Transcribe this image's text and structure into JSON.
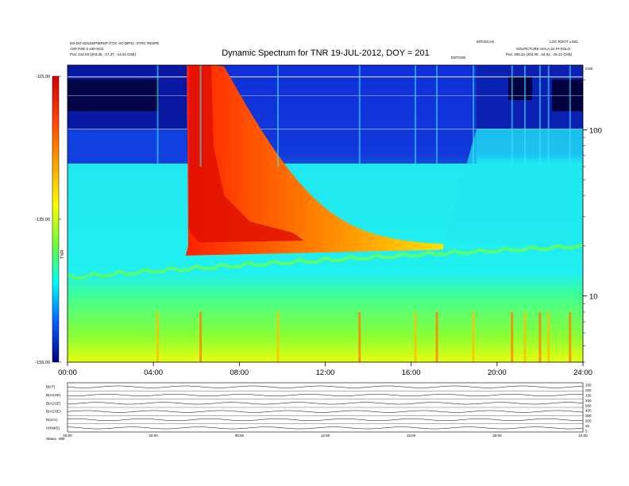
{
  "chart_data": {
    "type": "heatmap",
    "title": "Dynamic Spectrum for TNR 19-JUL-2012, DOY = 201",
    "header_left": {
      "line1": "DS-DO-SOLEDPWRSP (TOC SO (BPS) -STRC RESPE",
      "line2": "ASP PSE-2 x30-SO2",
      "line3": "Pos:     210.03 (204.35, -17.37, -14.52 GSE)"
    },
    "header_right": {
      "line1": "LOC ROOT x 501",
      "line2": "SOLPICTURE SOLA-24 PI-SOLO",
      "line3": "Pos:     208.22 (204.06, -44.01, -15.12 GSE)",
      "tag": "MTOSCAS",
      "corner": "GSE"
    },
    "center_tag": "DSTOSE",
    "x_axis": {
      "range_hours": [
        0,
        24
      ],
      "ticks": [
        "00:00",
        "04:00",
        "08:00",
        "12:00",
        "16:00",
        "20:00",
        "24:00"
      ]
    },
    "y_axis": {
      "scale": "log",
      "range": [
        4.0,
        245
      ],
      "ticks": [
        10,
        100
      ],
      "tick_labels": [
        "10",
        "100"
      ]
    },
    "colorbar": {
      "range": [
        -155.0,
        -115.0
      ],
      "tick_labels": [
        "-115.00",
        "-135.00",
        "-155.00"
      ],
      "label": "TNR",
      "colors": [
        "#8b0000",
        "#ff0000",
        "#ff8c00",
        "#ffff00",
        "#80ff00",
        "#00ff80",
        "#00ffff",
        "#0080ff",
        "#0000ff",
        "#000080"
      ]
    },
    "features": {
      "burst_start_hours": 5.5,
      "burst_end_hours": 17.5,
      "plasma_line_start_mhz": 13.0,
      "plasma_line_end_mhz": 20.0
    },
    "panels": {
      "labels": [
        "B(nT)",
        "B(AGSE)",
        "B(AGSE)",
        "B(AGSE)",
        "N(1/cc)",
        "V(KM/S)"
      ],
      "right_scales": [
        "250",
        "200",
        "150",
        "100",
        "500",
        "400",
        "300",
        "200",
        "10",
        "5"
      ],
      "footer_label": "Status",
      "footer_value": "WB",
      "time_ticks": [
        "00:00",
        "04:00",
        "08:00",
        "12:00",
        "16:00",
        "20:00",
        "24:00"
      ]
    }
  }
}
